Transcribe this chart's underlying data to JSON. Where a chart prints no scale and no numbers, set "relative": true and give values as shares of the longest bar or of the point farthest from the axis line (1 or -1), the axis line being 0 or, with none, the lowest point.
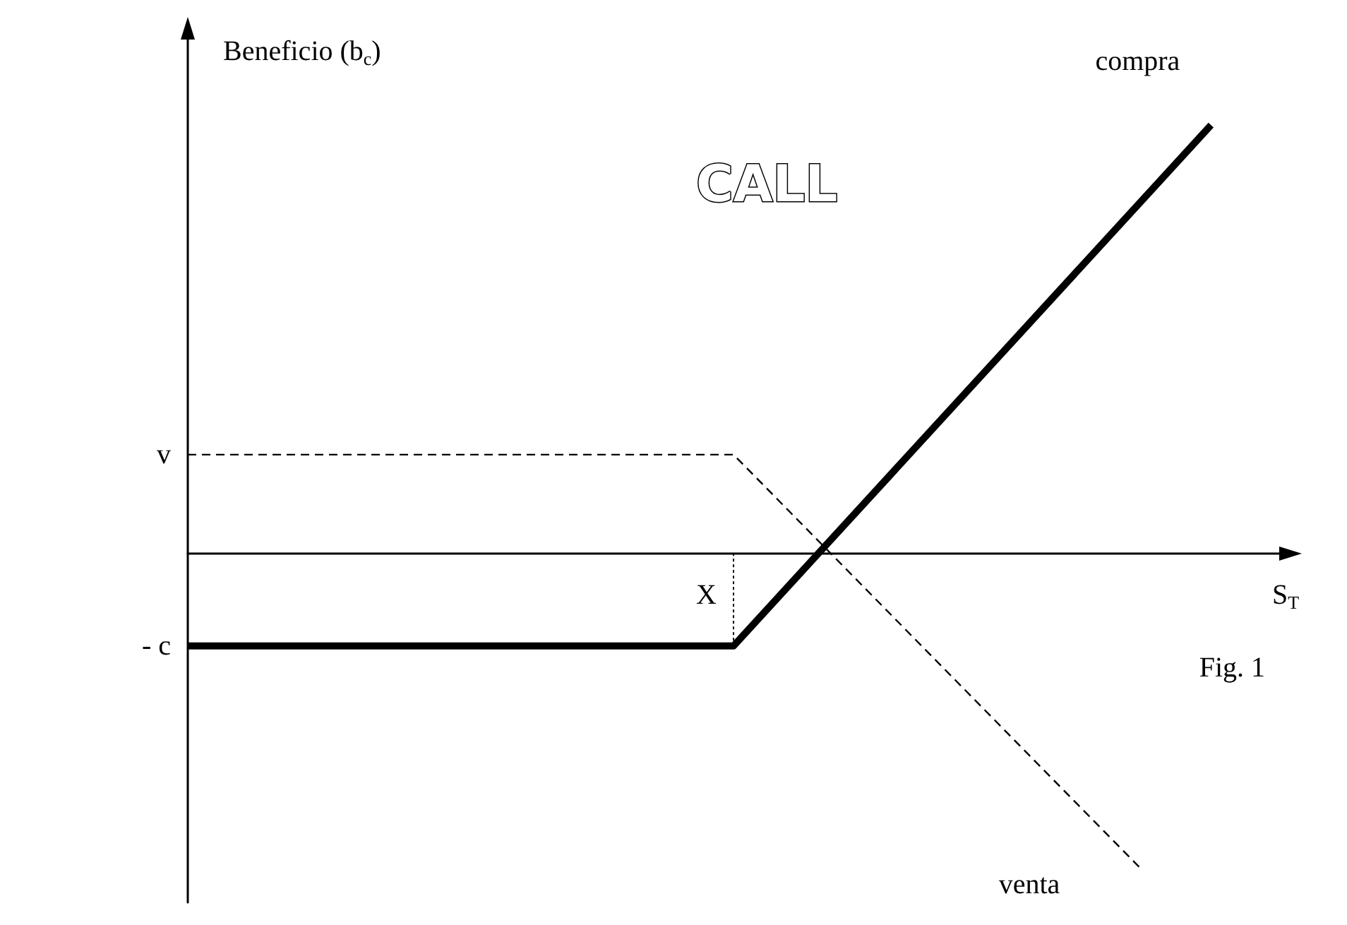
{
  "chart_data": {
    "type": "line",
    "title": "CALL",
    "xlabel": "S$_{T}$",
    "ylabel": "Beneficio (b$_{c}$)",
    "relative": true,
    "legend": false,
    "grid": false,
    "categories": [
      null,
      null,
      null,
      null,
      null,
      null,
      null,
      null,
      null,
      null,
      null,
      null,
      null,
      null,
      null,
      null,
      null
    ],
    "series": [
      {
        "name": "compra",
        "color": "#000000",
        "line_style": "solid",
        "values": [
          -0.217,
          null,
          null,
          null,
          null,
          null,
          null,
          null,
          -0.217,
          null,
          null,
          null,
          null,
          null,
          null,
          1,
          null
        ]
      },
      {
        "name": "venta",
        "color": "#000000",
        "line_style": "dashed",
        "values": [
          0.23,
          null,
          null,
          null,
          null,
          null,
          null,
          null,
          0.23,
          null,
          null,
          null,
          null,
          null,
          -0.742,
          null,
          null
        ]
      }
    ],
    "annotations": [
      "v",
      "- c",
      "X",
      "Fig. 1"
    ]
  }
}
